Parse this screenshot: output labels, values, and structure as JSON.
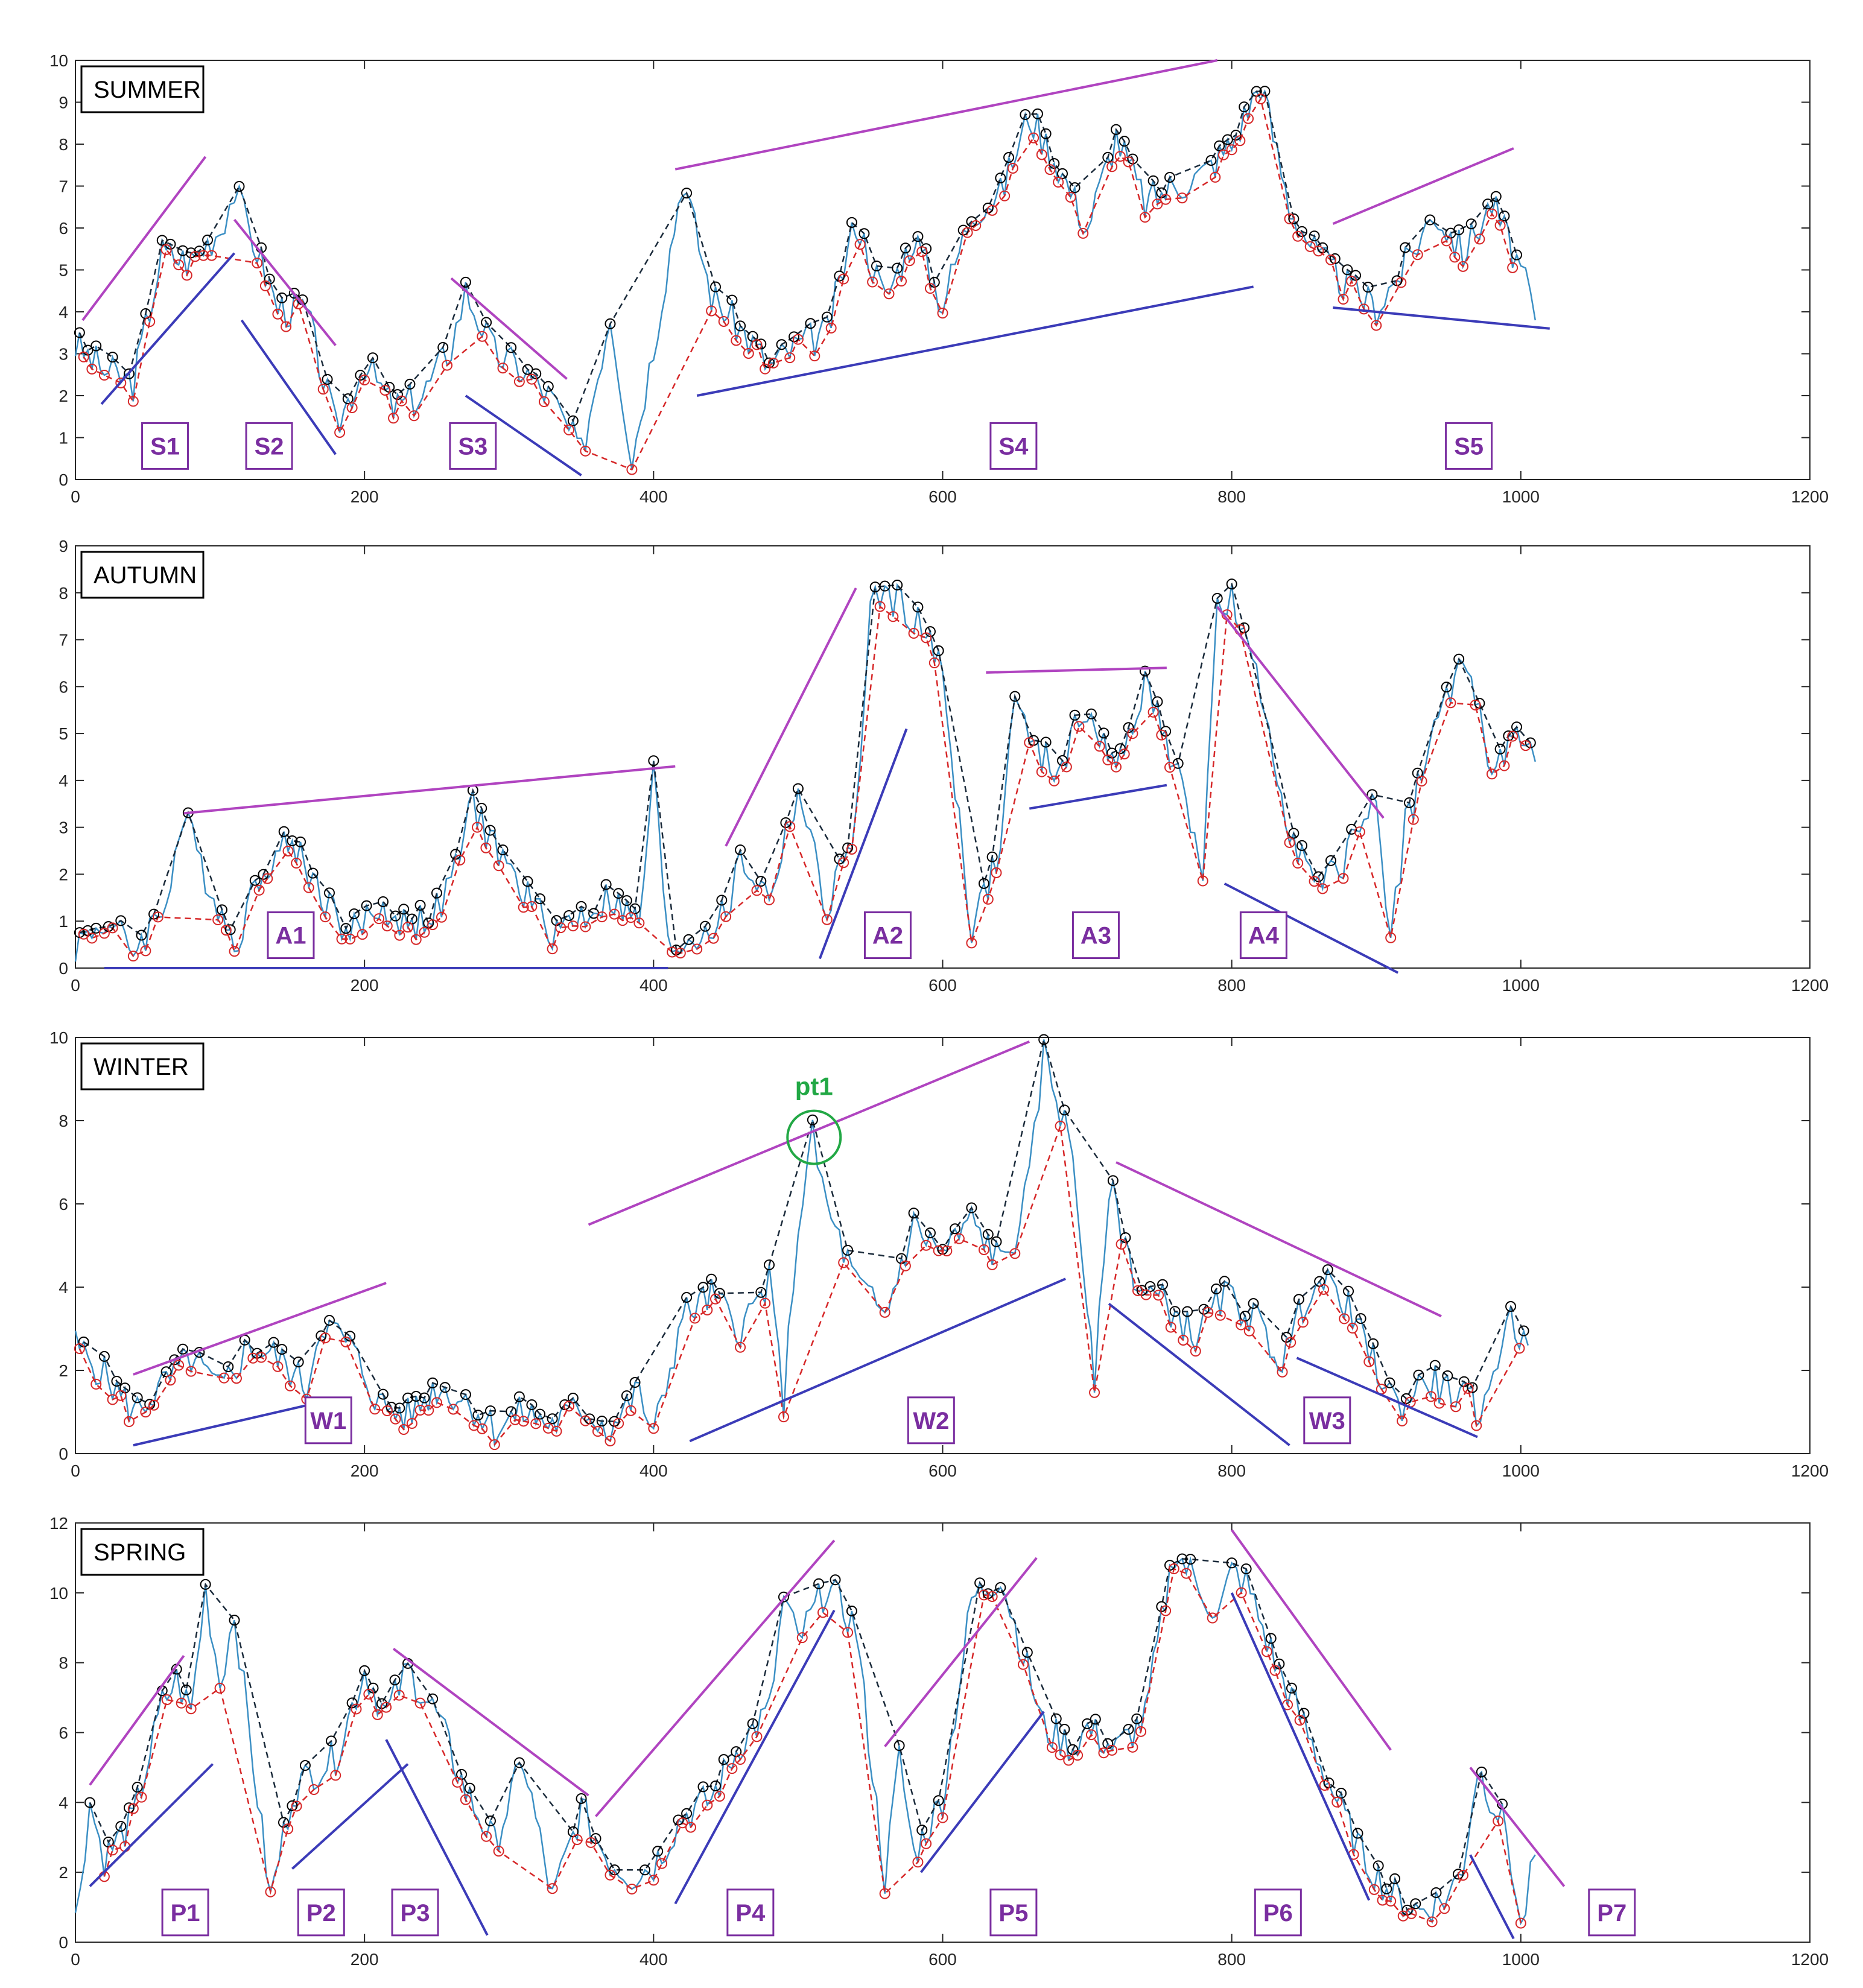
{
  "colors": {
    "series": "#3b8fc4",
    "peaks_line": "#1a2a3a",
    "valleys_line": "#d62728",
    "peak_marker": "#000000",
    "valley_marker": "#d62728",
    "upper_trend": "#b044c0",
    "lower_trend": "#3b3bb8",
    "label_text": "#7a2ea0",
    "label_border": "#7a2ea0",
    "highlight": "#22a845"
  },
  "chart_data": [
    {
      "type": "line",
      "title": "SUMMER",
      "xlim": [
        0,
        1200
      ],
      "ylim": [
        0,
        10
      ],
      "xticks": [
        "0",
        "200",
        "400",
        "600",
        "800",
        "1000",
        "1200"
      ],
      "yticks": [
        "0",
        "1",
        "2",
        "3",
        "4",
        "5",
        "6",
        "7",
        "8",
        "9",
        "10"
      ],
      "series_x": [
        0,
        20,
        40,
        60,
        80,
        100,
        110,
        120,
        140,
        160,
        180,
        200,
        220,
        240,
        260,
        270,
        290,
        310,
        330,
        350,
        370,
        385,
        400,
        420,
        440,
        460,
        480,
        500,
        520,
        540,
        560,
        580,
        600,
        620,
        640,
        660,
        680,
        700,
        720,
        740,
        760,
        780,
        800,
        820,
        840,
        860,
        880,
        900,
        920,
        940,
        960,
        980,
        1000,
        1010
      ],
      "series_y": [
        3.2,
        2.6,
        2.3,
        5.4,
        5.2,
        6.0,
        6.9,
        6.0,
        4.1,
        4.0,
        1.2,
        2.8,
        1.7,
        2.0,
        3.2,
        4.5,
        3.0,
        2.6,
        1.9,
        0.6,
        4.0,
        0.5,
        3.2,
        7.2,
        4.4,
        3.6,
        2.7,
        3.2,
        3.5,
        6.2,
        4.3,
        5.8,
        4.2,
        6.4,
        6.8,
        8.7,
        7.5,
        6.0,
        8.2,
        6.6,
        7.0,
        7.3,
        8.0,
        9.5,
        6.5,
        5.3,
        4.6,
        4.1,
        5.1,
        6.4,
        5.4,
        6.6,
        5.0,
        3.8
      ],
      "upper_trends": [
        [
          [
            5,
            3.8
          ],
          [
            90,
            7.7
          ]
        ],
        [
          [
            110,
            6.2
          ],
          [
            180,
            3.2
          ]
        ],
        [
          [
            260,
            4.8
          ],
          [
            340,
            2.4
          ]
        ],
        [
          [
            415,
            7.4
          ],
          [
            790,
            10.0
          ]
        ],
        [
          [
            870,
            6.1
          ],
          [
            995,
            7.9
          ]
        ]
      ],
      "lower_trends": [
        [
          [
            18,
            1.8
          ],
          [
            110,
            5.4
          ]
        ],
        [
          [
            115,
            3.8
          ],
          [
            180,
            0.6
          ]
        ],
        [
          [
            270,
            2.0
          ],
          [
            350,
            0.1
          ]
        ],
        [
          [
            430,
            2.0
          ],
          [
            815,
            4.6
          ]
        ],
        [
          [
            870,
            4.1
          ],
          [
            1020,
            3.6
          ]
        ]
      ],
      "segment_labels": [
        {
          "text": "S1",
          "x": 62,
          "y": 0.8
        },
        {
          "text": "S2",
          "x": 134,
          "y": 0.8
        },
        {
          "text": "S3",
          "x": 275,
          "y": 0.8
        },
        {
          "text": "S4",
          "x": 649,
          "y": 0.8
        },
        {
          "text": "S5",
          "x": 964,
          "y": 0.8
        }
      ]
    },
    {
      "type": "line",
      "title": "AUTUMN",
      "xlim": [
        0,
        1200
      ],
      "ylim": [
        0,
        9
      ],
      "xticks": [
        "0",
        "200",
        "400",
        "600",
        "800",
        "1000",
        "1200"
      ],
      "yticks": [
        "0",
        "1",
        "2",
        "3",
        "4",
        "5",
        "6",
        "7",
        "8",
        "9"
      ],
      "series_x": [
        0,
        20,
        40,
        60,
        75,
        90,
        110,
        130,
        150,
        170,
        190,
        210,
        230,
        250,
        260,
        275,
        290,
        310,
        330,
        350,
        370,
        390,
        400,
        410,
        430,
        450,
        460,
        480,
        500,
        520,
        540,
        550,
        560,
        580,
        600,
        620,
        640,
        650,
        660,
        680,
        700,
        720,
        740,
        760,
        780,
        790,
        800,
        820,
        840,
        860,
        880,
        900,
        910,
        920,
        940,
        960,
        980,
        1000,
        1010
      ],
      "series_y": [
        0.5,
        1.0,
        0.4,
        1.2,
        3.2,
        2.0,
        0.5,
        2.2,
        2.7,
        1.6,
        0.7,
        1.3,
        0.9,
        1.2,
        1.8,
        3.5,
        2.6,
        1.6,
        0.8,
        1.1,
        1.5,
        0.9,
        4.2,
        0.4,
        0.7,
        1.1,
        2.3,
        1.5,
        3.8,
        1.2,
        3.1,
        7.6,
        8.0,
        7.5,
        6.3,
        0.8,
        2.5,
        6.0,
        4.7,
        4.2,
        5.6,
        4.1,
        6.2,
        4.3,
        2.2,
        7.6,
        7.8,
        5.8,
        3.0,
        1.6,
        2.4,
        3.8,
        0.6,
        3.0,
        5.0,
        6.7,
        4.2,
        4.9,
        4.4
      ],
      "upper_trends": [
        [
          [
            75,
            3.3
          ],
          [
            415,
            4.3
          ]
        ],
        [
          [
            450,
            2.6
          ],
          [
            540,
            8.1
          ]
        ],
        [
          [
            630,
            6.3
          ],
          [
            755,
            6.4
          ]
        ],
        [
          [
            790,
            7.7
          ],
          [
            905,
            3.2
          ]
        ]
      ],
      "lower_trends": [
        [
          [
            20,
            0.0
          ],
          [
            410,
            0.0
          ]
        ],
        [
          [
            515,
            0.2
          ],
          [
            575,
            5.1
          ]
        ],
        [
          [
            660,
            3.4
          ],
          [
            755,
            3.9
          ]
        ],
        [
          [
            795,
            1.8
          ],
          [
            915,
            -0.1
          ]
        ]
      ],
      "segment_labels": [
        {
          "text": "A1",
          "x": 149,
          "y": 0.7
        },
        {
          "text": "A2",
          "x": 562,
          "y": 0.7
        },
        {
          "text": "A3",
          "x": 706,
          "y": 0.7
        },
        {
          "text": "A4",
          "x": 822,
          "y": 0.7
        }
      ]
    },
    {
      "type": "line",
      "title": "WINTER",
      "xlim": [
        0,
        1200
      ],
      "ylim": [
        0,
        10
      ],
      "xticks": [
        "0",
        "200",
        "400",
        "600",
        "800",
        "1000",
        "1200"
      ],
      "yticks": [
        "0",
        "2",
        "4",
        "6",
        "8",
        "10"
      ],
      "series_x": [
        0,
        20,
        40,
        60,
        80,
        100,
        120,
        140,
        160,
        170,
        190,
        210,
        230,
        250,
        270,
        290,
        310,
        330,
        350,
        370,
        390,
        400,
        420,
        440,
        460,
        480,
        490,
        500,
        510,
        520,
        540,
        560,
        580,
        600,
        620,
        640,
        650,
        660,
        670,
        690,
        700,
        705,
        715,
        735,
        755,
        775,
        795,
        815,
        835,
        855,
        875,
        895,
        915,
        935,
        955,
        975,
        990,
        1005
      ],
      "series_y": [
        2.6,
        1.9,
        1.0,
        1.6,
        2.3,
        1.5,
        2.6,
        2.3,
        1.6,
        3.2,
        2.6,
        1.2,
        0.9,
        1.6,
        1.3,
        0.6,
        1.0,
        0.7,
        1.1,
        0.6,
        1.5,
        0.4,
        3.3,
        3.8,
        3.0,
        4.1,
        1.3,
        5.5,
        7.6,
        5.9,
        4.1,
        3.3,
        5.5,
        4.8,
        5.6,
        4.6,
        5.2,
        6.5,
        9.7,
        7.2,
        3.6,
        1.4,
        6.5,
        4.0,
        3.6,
        2.8,
        3.8,
        3.3,
        2.2,
        4.1,
        3.9,
        2.4,
        1.1,
        1.8,
        1.4,
        1.0,
        3.3,
        2.6
      ],
      "upper_trends": [
        [
          [
            40,
            1.9
          ],
          [
            215,
            4.1
          ]
        ],
        [
          [
            355,
            5.5
          ],
          [
            660,
            9.9
          ]
        ],
        [
          [
            720,
            7.0
          ],
          [
            945,
            3.3
          ]
        ]
      ],
      "lower_trends": [
        [
          [
            40,
            0.2
          ],
          [
            165,
            1.2
          ]
        ],
        [
          [
            425,
            0.3
          ],
          [
            685,
            4.2
          ]
        ],
        [
          [
            715,
            3.6
          ],
          [
            840,
            0.2
          ]
        ],
        [
          [
            845,
            2.3
          ],
          [
            970,
            0.4
          ]
        ]
      ],
      "segment_labels": [
        {
          "text": "W1",
          "x": 175,
          "y": 0.8
        },
        {
          "text": "W2",
          "x": 592,
          "y": 0.8
        },
        {
          "text": "W3",
          "x": 866,
          "y": 0.8
        }
      ],
      "annotations": [
        {
          "text": "pt1",
          "x": 511,
          "y": 7.6
        }
      ]
    },
    {
      "type": "line",
      "title": "SPRING",
      "xlim": [
        0,
        1200
      ],
      "ylim": [
        0,
        12
      ],
      "xticks": [
        "0",
        "200",
        "400",
        "600",
        "800",
        "1000",
        "1200"
      ],
      "yticks": [
        "0",
        "2",
        "4",
        "6",
        "8",
        "10",
        "12"
      ],
      "series_x": [
        0,
        10,
        20,
        40,
        60,
        70,
        80,
        90,
        100,
        110,
        120,
        135,
        150,
        165,
        180,
        200,
        215,
        230,
        250,
        270,
        290,
        310,
        330,
        350,
        360,
        370,
        385,
        400,
        420,
        440,
        460,
        480,
        490,
        500,
        520,
        540,
        560,
        570,
        580,
        600,
        620,
        640,
        650,
        670,
        690,
        700,
        720,
        740,
        760,
        780,
        790,
        800,
        810,
        830,
        850,
        870,
        890,
        910,
        930,
        950,
        960,
        970,
        990,
        1000,
        1010
      ],
      "series_y": [
        0.6,
        4.0,
        2.4,
        3.5,
        6.8,
        7.5,
        6.6,
        10.1,
        7.4,
        9.5,
        6.1,
        1.2,
        4.3,
        4.9,
        5.3,
        7.8,
        6.5,
        7.8,
        6.5,
        4.3,
        2.8,
        5.2,
        1.2,
        3.8,
        3.0,
        2.3,
        1.9,
        2.2,
        3.6,
        4.1,
        5.7,
        6.6,
        9.8,
        8.6,
        10.2,
        9.0,
        1.8,
        5.3,
        2.5,
        4.1,
        9.8,
        10.5,
        9.1,
        6.1,
        5.6,
        6.1,
        5.5,
        6.4,
        11.2,
        10.1,
        9.2,
        10.6,
        10.3,
        8.0,
        6.2,
        4.3,
        2.5,
        1.4,
        0.9,
        1.3,
        2.2,
        5.0,
        3.2,
        0.3,
        2.5
      ],
      "upper_trends": [
        [
          [
            10,
            4.5
          ],
          [
            75,
            8.2
          ]
        ],
        [
          [
            220,
            8.4
          ],
          [
            355,
            4.2
          ]
        ],
        [
          [
            360,
            3.6
          ],
          [
            525,
            11.5
          ]
        ],
        [
          [
            560,
            5.6
          ],
          [
            665,
            11.0
          ]
        ],
        [
          [
            800,
            11.8
          ],
          [
            910,
            5.5
          ]
        ],
        [
          [
            965,
            5.0
          ],
          [
            1030,
            1.6
          ]
        ]
      ],
      "lower_trends": [
        [
          [
            10,
            1.6
          ],
          [
            95,
            5.1
          ]
        ],
        [
          [
            150,
            2.1
          ],
          [
            230,
            5.1
          ]
        ],
        [
          [
            215,
            5.8
          ],
          [
            285,
            0.2
          ]
        ],
        [
          [
            415,
            1.1
          ],
          [
            525,
            9.5
          ]
        ],
        [
          [
            585,
            2.0
          ],
          [
            670,
            6.6
          ]
        ],
        [
          [
            800,
            10.0
          ],
          [
            895,
            1.2
          ]
        ],
        [
          [
            965,
            2.5
          ],
          [
            995,
            0.1
          ]
        ]
      ],
      "segment_labels": [
        {
          "text": "P1",
          "x": 76,
          "y": 0.85
        },
        {
          "text": "P2",
          "x": 170,
          "y": 0.85
        },
        {
          "text": "P3",
          "x": 235,
          "y": 0.85
        },
        {
          "text": "P4",
          "x": 467,
          "y": 0.85
        },
        {
          "text": "P5",
          "x": 649,
          "y": 0.85
        },
        {
          "text": "P6",
          "x": 832,
          "y": 0.85
        },
        {
          "text": "P7",
          "x": 1063,
          "y": 0.85
        }
      ]
    }
  ]
}
